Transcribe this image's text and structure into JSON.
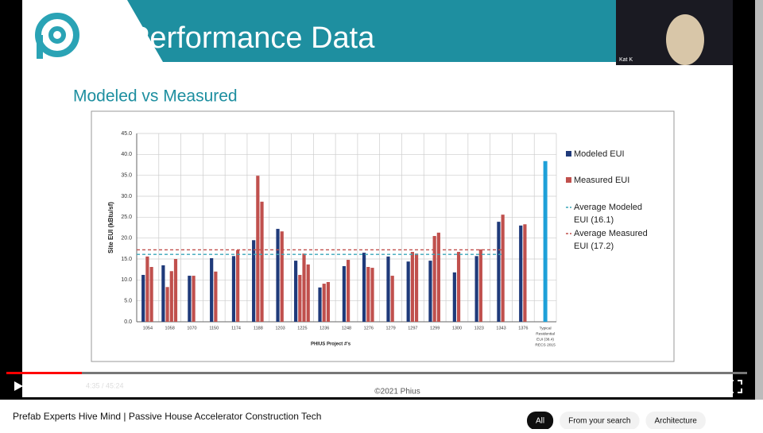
{
  "slide": {
    "title": "Performance Data",
    "subtitle": "Modeled vs Measured",
    "watermark": "©2021 Phius",
    "chart": {
      "type": "grouped-bar",
      "y_label": "Site EUI (kBtu/sf)",
      "x_label": "PHIUS Project #'s",
      "ylim": [
        0,
        45
      ],
      "yticks": [
        {
          "value": 0,
          "label": "0.0"
        },
        {
          "value": 5,
          "label": "5.0"
        },
        {
          "value": 10,
          "label": "10.0"
        },
        {
          "value": 15,
          "label": "15.0"
        },
        {
          "value": 20,
          "label": "20.0"
        },
        {
          "value": 25,
          "label": "25.0"
        },
        {
          "value": 30,
          "label": "30.0"
        },
        {
          "value": 35,
          "label": "35.0"
        },
        {
          "value": 40,
          "label": "40.0"
        },
        {
          "value": 45,
          "label": "45.0"
        }
      ],
      "grid": true,
      "colors": {
        "modeled": "#1f3a7a",
        "measured": "#c0504d",
        "reference": "#1ea0d8",
        "avg_modeled": "#3aa6b9",
        "avg_measured": "#c0504d"
      },
      "groups": [
        {
          "label": "1054",
          "modeled": [
            11.2
          ],
          "measured": [
            15.6,
            13.1
          ]
        },
        {
          "label": "1058",
          "modeled": [
            13.5
          ],
          "measured": [
            8.3,
            12.1,
            15
          ]
        },
        {
          "label": "1070",
          "modeled": [
            11
          ],
          "measured": [
            11
          ]
        },
        {
          "label": "1150",
          "modeled": [
            15.2
          ],
          "measured": [
            12
          ]
        },
        {
          "label": "1174",
          "modeled": [
            15.7
          ],
          "measured": [
            17.1
          ]
        },
        {
          "label": "1188",
          "modeled": [
            19.5
          ],
          "measured": [
            34.9,
            28.7
          ]
        },
        {
          "label": "1203",
          "modeled": [
            22.2
          ],
          "measured": [
            21.6
          ]
        },
        {
          "label": "1225",
          "modeled": [
            14.6
          ],
          "measured": [
            11.2,
            16.3,
            13.7
          ]
        },
        {
          "label": "1236",
          "modeled": [
            8.2
          ],
          "measured": [
            9.1,
            9.5
          ]
        },
        {
          "label": "1248",
          "modeled": [
            13.3
          ],
          "measured": [
            14.8
          ]
        },
        {
          "label": "1276",
          "modeled": [
            16.5
          ],
          "measured": [
            13.1,
            12.9
          ]
        },
        {
          "label": "1279",
          "modeled": [
            15.6
          ],
          "measured": [
            11
          ]
        },
        {
          "label": "1297",
          "modeled": [
            14.4
          ],
          "measured": [
            16.7,
            16.3
          ]
        },
        {
          "label": "1299",
          "modeled": [
            14.6
          ],
          "measured": [
            20.5,
            21.3
          ]
        },
        {
          "label": "1300",
          "modeled": [
            11.8
          ],
          "measured": [
            16.7
          ]
        },
        {
          "label": "1323",
          "modeled": [
            15.7
          ],
          "measured": [
            17.3
          ]
        },
        {
          "label": "1343",
          "modeled": [
            23.9
          ],
          "measured": [
            25.6
          ]
        },
        {
          "label": "1376",
          "modeled": [
            23
          ],
          "measured": [
            23.3
          ]
        }
      ],
      "reference": {
        "label": [
          "Typical",
          "Residential",
          "EUI (38.4)",
          "RECS 2015"
        ],
        "value": 38.4
      },
      "avg_modeled": 16.1,
      "avg_measured": 17.2,
      "legend": {
        "modeled": "Modeled EUI",
        "measured": "Measured EUI",
        "avg_modeled": [
          "Average Modeled",
          "EUI (16.1)"
        ],
        "avg_measured": [
          "Average Measured",
          "EUI (17.2)"
        ]
      }
    }
  },
  "webcam": {
    "name": "Kat K"
  },
  "player": {
    "time": "4:35 / 45:24"
  },
  "video_title": "Prefab Experts Hive Mind | Passive House Accelerator Construction Tech",
  "chips": [
    "All",
    "From your search",
    "Architecture"
  ]
}
